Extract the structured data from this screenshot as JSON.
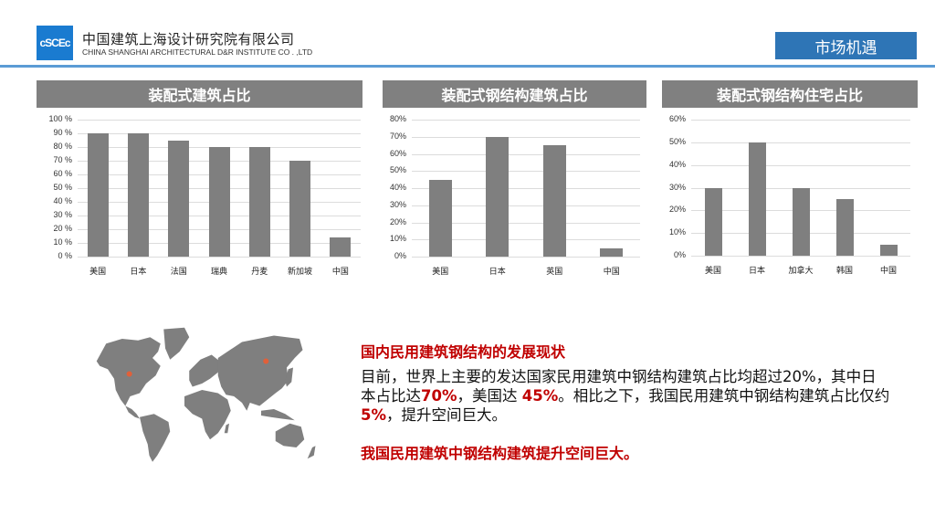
{
  "header": {
    "logo_text": "cSCEc",
    "company_cn": "中国建筑上海设计研究院有限公司",
    "company_en": "CHINA SHANGHAI ARCHITECTURAL D&R INSTITUTE CO . ,LTD",
    "section_tag": "市场机遇",
    "colors": {
      "logo": "#1a7bd0",
      "tag": "#2e75b6",
      "rule": "#5b9bd5"
    }
  },
  "chart_data": [
    {
      "type": "bar",
      "title": "装配式建筑占比",
      "categories": [
        "美国",
        "日本",
        "法国",
        "瑞典",
        "丹麦",
        "新加坡",
        "中国"
      ],
      "values": [
        90,
        90,
        85,
        80,
        80,
        70,
        14
      ],
      "ylim": [
        0,
        100
      ],
      "yticks": [
        "100 %",
        "90 %",
        "80 %",
        "70 %",
        "60 %",
        "50 %",
        "40 %",
        "30 %",
        "20 %",
        "10 %",
        "0 %"
      ],
      "xlabel": "",
      "ylabel": "",
      "grid": true,
      "legend": "none",
      "bar_color": "#7f7f7f"
    },
    {
      "type": "bar",
      "title": "装配式钢结构建筑占比",
      "categories": [
        "美国",
        "日本",
        "英国",
        "中国"
      ],
      "values": [
        45,
        70,
        65,
        5
      ],
      "ylim": [
        0,
        80
      ],
      "yticks": [
        "80%",
        "70%",
        "60%",
        "50%",
        "40%",
        "30%",
        "20%",
        "10%",
        "0%"
      ],
      "xlabel": "",
      "ylabel": "",
      "grid": true,
      "legend": "none",
      "bar_color": "#7f7f7f"
    },
    {
      "type": "bar",
      "title": "装配式钢结构住宅占比",
      "categories": [
        "美国",
        "日本",
        "加拿大",
        "韩国",
        "中国"
      ],
      "values": [
        30,
        50,
        30,
        25,
        5
      ],
      "ylim": [
        0,
        60
      ],
      "yticks": [
        "60%",
        "50%",
        "40%",
        "30%",
        "20%",
        "10%",
        "0%"
      ],
      "xlabel": "",
      "ylabel": "",
      "grid": true,
      "legend": "none",
      "bar_color": "#7f7f7f"
    }
  ],
  "map": {
    "icon": "world-map",
    "markers": [
      "north-america",
      "asia"
    ],
    "marker_color": "#e0603a"
  },
  "text": {
    "heading": "国内民用建筑钢结构的发展现状",
    "body_1": "目前，世界上主要的发达国家民用建筑中钢结构建筑占比均超过20%，其中日本占比达",
    "hl_1": "70%",
    "body_2": "，美国达 ",
    "hl_2": "45%",
    "body_3": "。相比之下，我国民用建筑中钢结构建筑占比仅约 ",
    "hl_3": "5%",
    "body_4": "，提升空间巨大。",
    "conclusion": "我国民用建筑中钢结构建筑提升空间巨大。",
    "highlight_color": "#c00000"
  }
}
